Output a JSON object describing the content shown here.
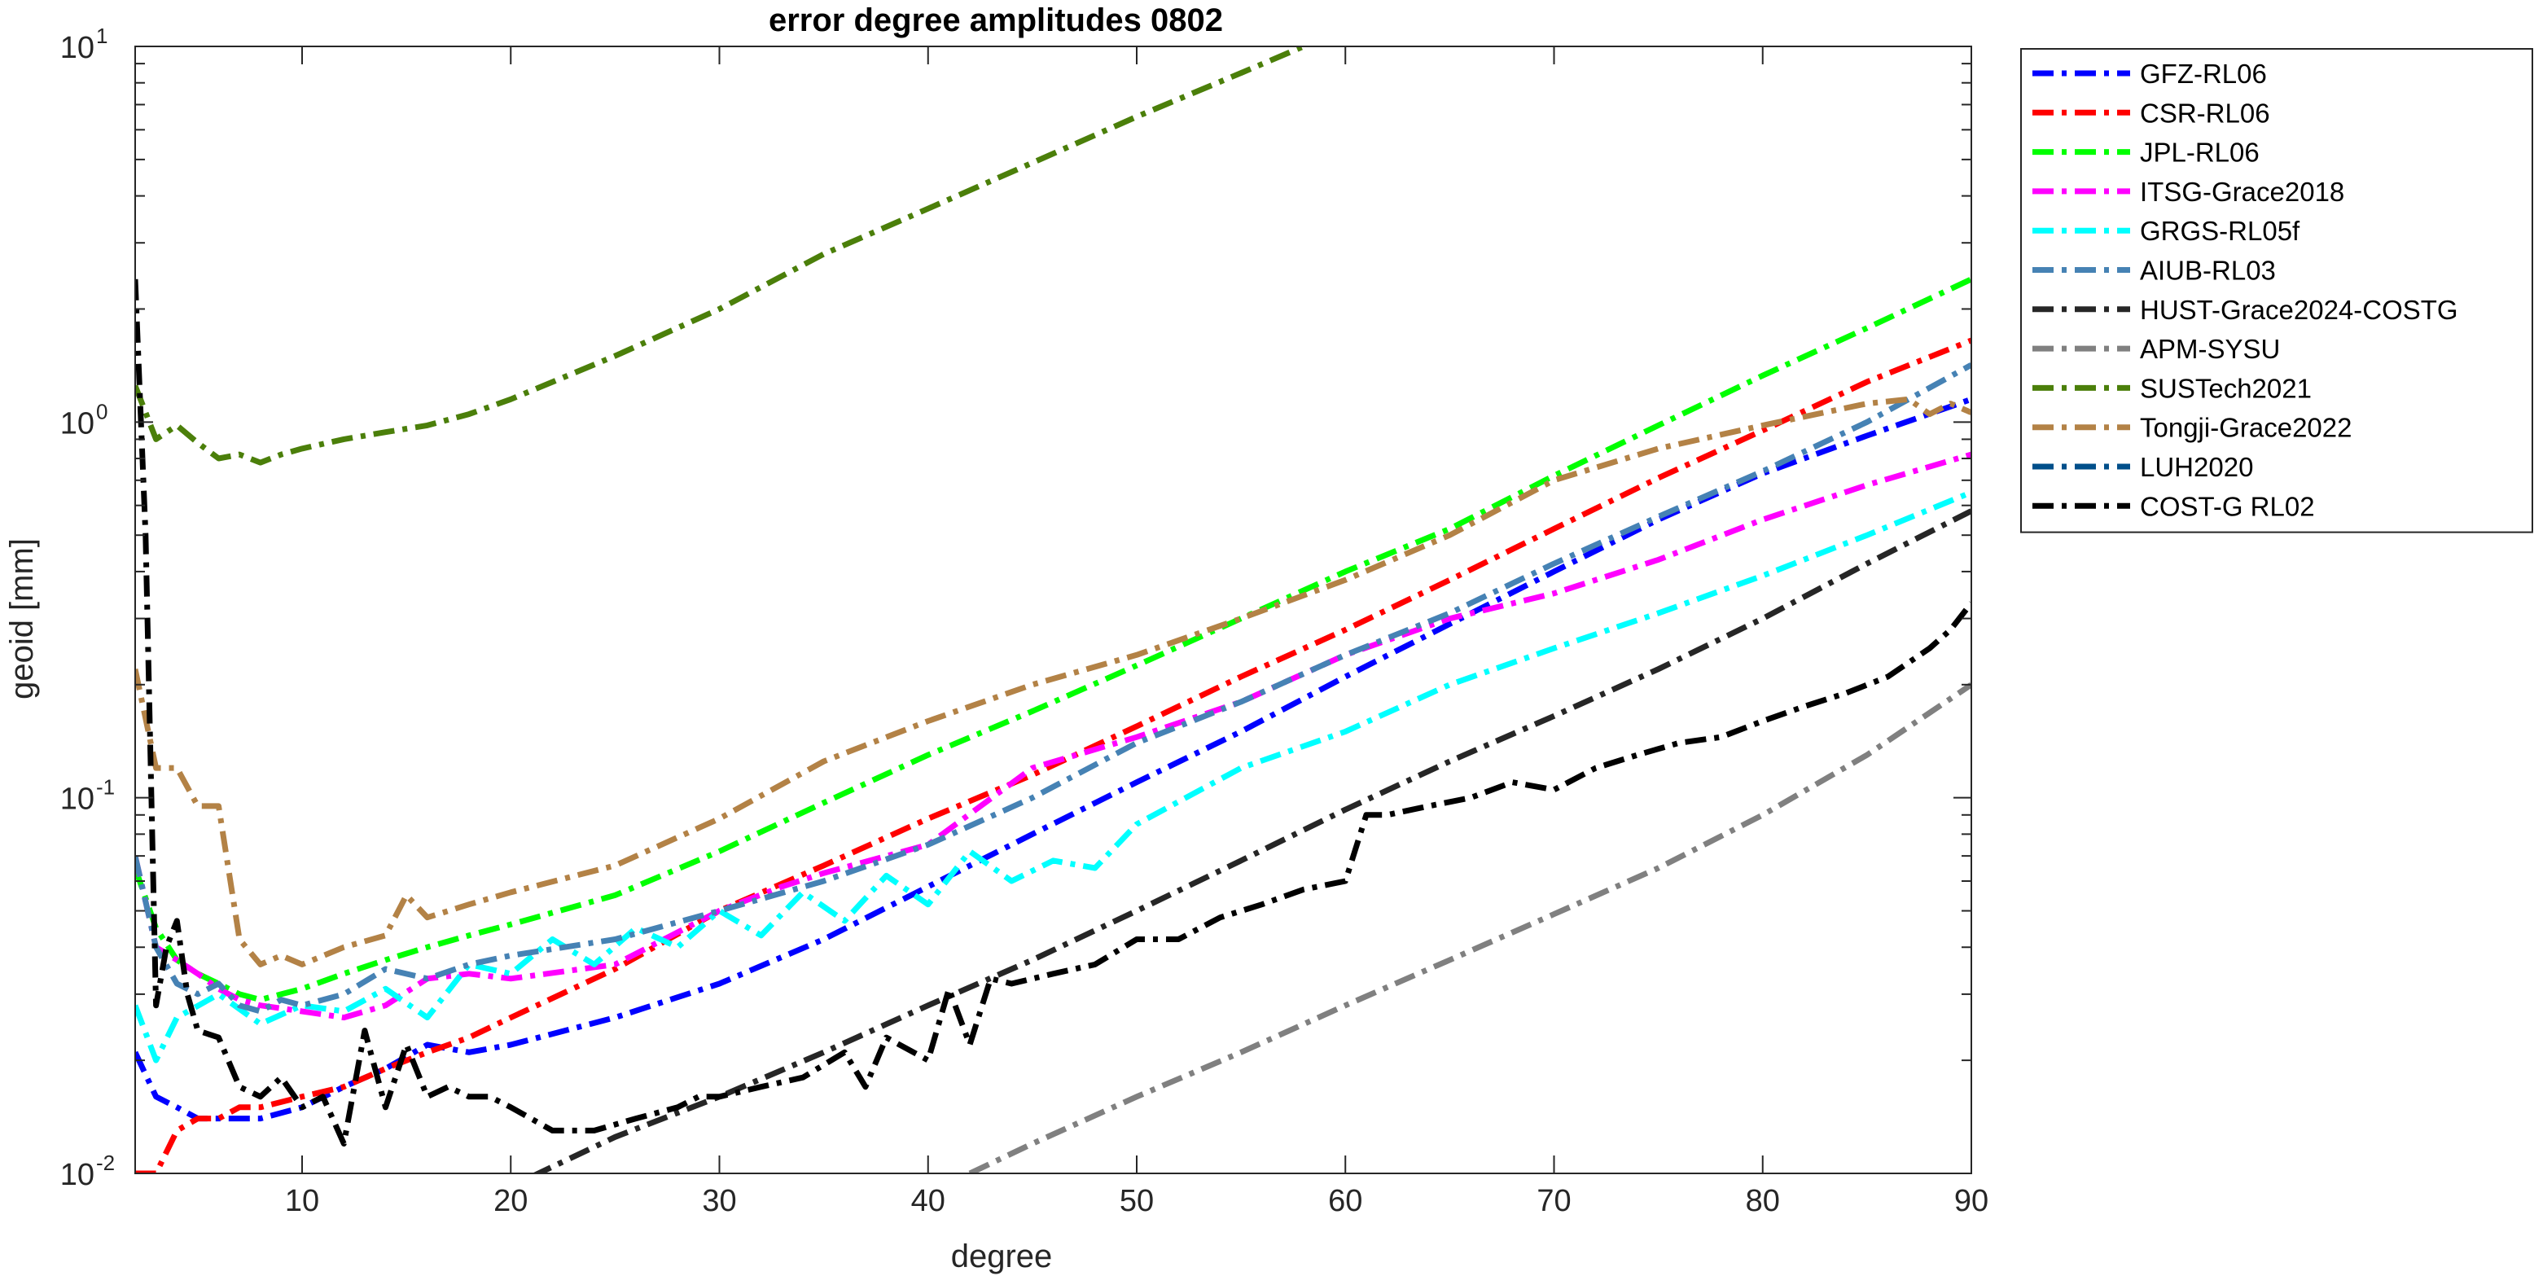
{
  "chart_data": {
    "type": "line",
    "title": "error degree amplitudes 0802",
    "xlabel": "degree",
    "ylabel": "geoid [mm]",
    "xlim": [
      2,
      90
    ],
    "ylim": [
      0.01,
      10
    ],
    "yscale": "log",
    "grid": false,
    "legend_position": "outside-right",
    "xticks": [
      10,
      20,
      30,
      40,
      50,
      60,
      70,
      80,
      90
    ],
    "xtick_labels": [
      "10",
      "20",
      "30",
      "40",
      "50",
      "60",
      "70",
      "80",
      "90"
    ],
    "yticks": [
      0.01,
      0.1,
      1,
      10
    ],
    "ytick_labels": [
      {
        "base": "10",
        "exp": "-2"
      },
      {
        "base": "10",
        "exp": "-1"
      },
      {
        "base": "10",
        "exp": "0"
      },
      {
        "base": "10",
        "exp": "1"
      }
    ],
    "series": [
      {
        "name": "GFZ-RL06",
        "color": "#0000ff",
        "dash": "dashdot",
        "x": [
          2,
          3,
          4,
          5,
          6,
          7,
          8,
          10,
          12,
          14,
          16,
          18,
          20,
          25,
          30,
          35,
          40,
          45,
          50,
          55,
          60,
          65,
          70,
          75,
          80,
          85,
          90
        ],
        "y": [
          0.021,
          0.016,
          0.015,
          0.014,
          0.014,
          0.014,
          0.014,
          0.015,
          0.017,
          0.019,
          0.022,
          0.021,
          0.022,
          0.026,
          0.032,
          0.042,
          0.058,
          0.08,
          0.11,
          0.15,
          0.21,
          0.29,
          0.4,
          0.55,
          0.73,
          0.92,
          1.15
        ]
      },
      {
        "name": "CSR-RL06",
        "color": "#ff0000",
        "dash": "dashdot",
        "x": [
          2,
          3,
          4,
          5,
          6,
          7,
          8,
          10,
          12,
          14,
          16,
          18,
          20,
          25,
          30,
          35,
          40,
          45,
          50,
          55,
          60,
          65,
          70,
          75,
          80,
          85,
          90
        ],
        "y": [
          0.01,
          0.01,
          0.013,
          0.014,
          0.014,
          0.015,
          0.015,
          0.016,
          0.017,
          0.019,
          0.021,
          0.023,
          0.026,
          0.035,
          0.05,
          0.066,
          0.088,
          0.115,
          0.155,
          0.21,
          0.28,
          0.38,
          0.52,
          0.71,
          0.95,
          1.28,
          1.65
        ]
      },
      {
        "name": "JPL-RL06",
        "color": "#00ff00",
        "dash": "dashdot",
        "x": [
          2,
          3,
          4,
          5,
          6,
          7,
          8,
          9,
          10,
          12,
          14,
          16,
          18,
          20,
          25,
          30,
          35,
          40,
          45,
          50,
          55,
          60,
          65,
          70,
          75,
          80,
          85,
          90
        ],
        "y": [
          0.065,
          0.045,
          0.037,
          0.034,
          0.032,
          0.03,
          0.029,
          0.03,
          0.031,
          0.034,
          0.037,
          0.04,
          0.043,
          0.046,
          0.055,
          0.072,
          0.097,
          0.13,
          0.17,
          0.225,
          0.3,
          0.4,
          0.52,
          0.72,
          0.98,
          1.33,
          1.78,
          2.4
        ]
      },
      {
        "name": "ITSG-Grace2018",
        "color": "#ff00ff",
        "dash": "dashdot",
        "x": [
          2,
          3,
          4,
          5,
          6,
          7,
          8,
          10,
          12,
          14,
          16,
          18,
          20,
          25,
          30,
          33,
          35,
          40,
          45,
          50,
          55,
          60,
          65,
          70,
          75,
          80,
          85,
          90
        ],
        "y": [
          0.07,
          0.04,
          0.037,
          0.034,
          0.031,
          0.029,
          0.028,
          0.027,
          0.026,
          0.028,
          0.033,
          0.034,
          0.033,
          0.036,
          0.05,
          0.058,
          0.063,
          0.075,
          0.12,
          0.145,
          0.18,
          0.24,
          0.3,
          0.35,
          0.43,
          0.55,
          0.68,
          0.82
        ]
      },
      {
        "name": "GRGS-RL05f",
        "color": "#00ffff",
        "dash": "dashdot",
        "x": [
          2,
          3,
          4,
          6,
          8,
          10,
          12,
          14,
          16,
          18,
          20,
          22,
          24,
          26,
          28,
          30,
          32,
          34,
          36,
          38,
          40,
          42,
          44,
          46,
          48,
          50,
          55,
          60,
          65,
          70,
          75,
          80,
          85,
          90
        ],
        "y": [
          0.028,
          0.02,
          0.026,
          0.03,
          0.025,
          0.028,
          0.027,
          0.031,
          0.026,
          0.036,
          0.034,
          0.042,
          0.036,
          0.045,
          0.04,
          0.05,
          0.043,
          0.056,
          0.047,
          0.062,
          0.052,
          0.072,
          0.06,
          0.068,
          0.065,
          0.085,
          0.12,
          0.15,
          0.2,
          0.25,
          0.31,
          0.39,
          0.5,
          0.65
        ]
      },
      {
        "name": "AIUB-RL03",
        "color": "#4682b4",
        "dash": "dashdot",
        "x": [
          2,
          3,
          4,
          5,
          6,
          7,
          8,
          9,
          10,
          12,
          14,
          16,
          18,
          20,
          25,
          30,
          35,
          40,
          45,
          50,
          55,
          60,
          65,
          70,
          75,
          80,
          85,
          90
        ],
        "y": [
          0.07,
          0.04,
          0.032,
          0.03,
          0.032,
          0.028,
          0.027,
          0.029,
          0.028,
          0.03,
          0.035,
          0.033,
          0.036,
          0.038,
          0.042,
          0.05,
          0.06,
          0.075,
          0.1,
          0.14,
          0.18,
          0.24,
          0.31,
          0.42,
          0.56,
          0.74,
          1.0,
          1.42
        ]
      },
      {
        "name": "HUST-Grace2024-COSTG",
        "color": "#262626",
        "dash": "dashdot",
        "x": [
          21,
          25,
          30,
          35,
          40,
          45,
          50,
          55,
          60,
          65,
          70,
          75,
          80,
          85,
          90
        ],
        "y": [
          0.0098,
          0.0125,
          0.016,
          0.021,
          0.028,
          0.037,
          0.05,
          0.068,
          0.093,
          0.125,
          0.165,
          0.22,
          0.3,
          0.42,
          0.58
        ]
      },
      {
        "name": "APM-SYSU",
        "color": "#808080",
        "dash": "dashdot",
        "x": [
          42,
          45,
          50,
          55,
          60,
          65,
          70,
          75,
          80,
          85,
          90
        ],
        "y": [
          0.01,
          0.012,
          0.016,
          0.021,
          0.028,
          0.037,
          0.049,
          0.065,
          0.09,
          0.13,
          0.2
        ]
      },
      {
        "name": "SUSTech2021",
        "color": "#4b7f0a",
        "dash": "dashdot",
        "x": [
          2,
          3,
          4,
          5,
          6,
          7,
          8,
          9,
          10,
          12,
          14,
          16,
          18,
          20,
          25,
          30,
          35,
          40,
          45,
          50,
          55,
          58
        ],
        "y": [
          1.25,
          0.9,
          0.98,
          0.88,
          0.8,
          0.82,
          0.78,
          0.82,
          0.85,
          0.9,
          0.94,
          0.98,
          1.05,
          1.15,
          1.5,
          2.0,
          2.8,
          3.7,
          4.9,
          6.5,
          8.5,
          10.0
        ]
      },
      {
        "name": "Tongji-Grace2022",
        "color": "#b38246",
        "dash": "dashdot",
        "x": [
          2,
          3,
          4,
          5,
          6,
          7,
          8,
          9,
          10,
          12,
          14,
          15,
          16,
          18,
          20,
          25,
          30,
          35,
          40,
          45,
          50,
          55,
          60,
          65,
          70,
          75,
          80,
          85,
          87,
          88,
          89,
          90
        ],
        "y": [
          0.22,
          0.12,
          0.12,
          0.095,
          0.095,
          0.042,
          0.036,
          0.038,
          0.036,
          0.04,
          0.043,
          0.055,
          0.048,
          0.052,
          0.056,
          0.066,
          0.088,
          0.125,
          0.16,
          0.2,
          0.24,
          0.3,
          0.38,
          0.5,
          0.7,
          0.85,
          0.98,
          1.12,
          1.15,
          1.05,
          1.12,
          1.06
        ]
      },
      {
        "name": "LUH2020",
        "color": "#004f8a",
        "dash": "dashdot",
        "x": [],
        "y": []
      },
      {
        "name": "COST-G RL02",
        "color": "#000000",
        "dash": "dashdot",
        "x": [
          2,
          2.5,
          3,
          3.5,
          4,
          4.5,
          5,
          6,
          7,
          8,
          9,
          10,
          11,
          12,
          13,
          14,
          15,
          16,
          17,
          18,
          19,
          20,
          22,
          24,
          26,
          28,
          29,
          30,
          32,
          34,
          36,
          37,
          38,
          40,
          41,
          42,
          43,
          44,
          46,
          48,
          50,
          52,
          54,
          56,
          58,
          60,
          61,
          62,
          64,
          66,
          68,
          70,
          72,
          74,
          76,
          78,
          80,
          82,
          84,
          86,
          88,
          89,
          90
        ],
        "y": [
          2.4,
          0.5,
          0.028,
          0.04,
          0.047,
          0.03,
          0.024,
          0.023,
          0.017,
          0.016,
          0.018,
          0.015,
          0.016,
          0.012,
          0.024,
          0.015,
          0.022,
          0.016,
          0.017,
          0.016,
          0.016,
          0.015,
          0.013,
          0.013,
          0.014,
          0.015,
          0.016,
          0.016,
          0.017,
          0.018,
          0.021,
          0.017,
          0.023,
          0.02,
          0.031,
          0.022,
          0.033,
          0.032,
          0.034,
          0.036,
          0.042,
          0.042,
          0.048,
          0.052,
          0.057,
          0.06,
          0.09,
          0.09,
          0.095,
          0.1,
          0.11,
          0.105,
          0.12,
          0.13,
          0.14,
          0.145,
          0.16,
          0.175,
          0.19,
          0.21,
          0.25,
          0.28,
          0.33
        ]
      }
    ]
  }
}
